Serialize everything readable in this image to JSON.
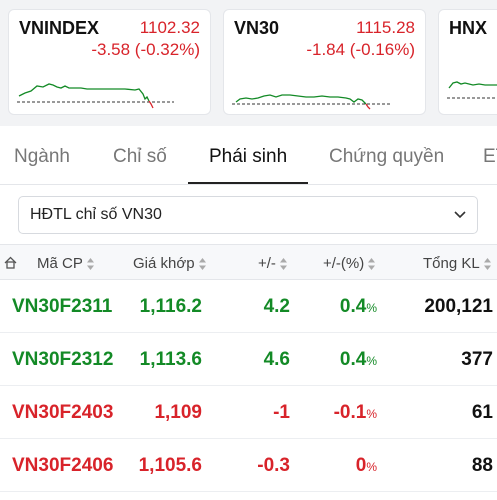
{
  "indices": [
    {
      "name": "VNINDEX",
      "value": "1102.32",
      "change": "-3.58 (-0.32%)"
    },
    {
      "name": "VN30",
      "value": "1115.28",
      "change": "-1.84 (-0.16%)"
    },
    {
      "name": "HNX",
      "value": "",
      "change": ""
    }
  ],
  "tabs": [
    "Ngành",
    "Chỉ số",
    "Phái sinh",
    "Chứng quyền",
    "ETF"
  ],
  "filter": {
    "selected": "HĐTL chỉ số VN30"
  },
  "table": {
    "headers": [
      "Mã CP",
      "Giá khớp",
      "+/-",
      "+/-(%)",
      "Tổng KL"
    ],
    "rows": [
      {
        "code": "VN30F2311",
        "price": "1,116.2",
        "change": "4.2",
        "pct": "0.4",
        "pct_unit": "%",
        "volume": "200,121",
        "color": "green"
      },
      {
        "code": "VN30F2312",
        "price": "1,113.6",
        "change": "4.6",
        "pct": "0.4",
        "pct_unit": "%",
        "volume": "377",
        "color": "green"
      },
      {
        "code": "VN30F2403",
        "price": "1,109",
        "change": "-1",
        "pct": "-0.1",
        "pct_unit": "%",
        "volume": "61",
        "color": "red"
      },
      {
        "code": "VN30F2406",
        "price": "1,105.6",
        "change": "-0.3",
        "pct": "0",
        "pct_unit": "%",
        "volume": "88",
        "color": "red"
      }
    ]
  },
  "colors": {
    "up": "#138a26",
    "down": "#d8232a",
    "reference_line": "#333333"
  }
}
